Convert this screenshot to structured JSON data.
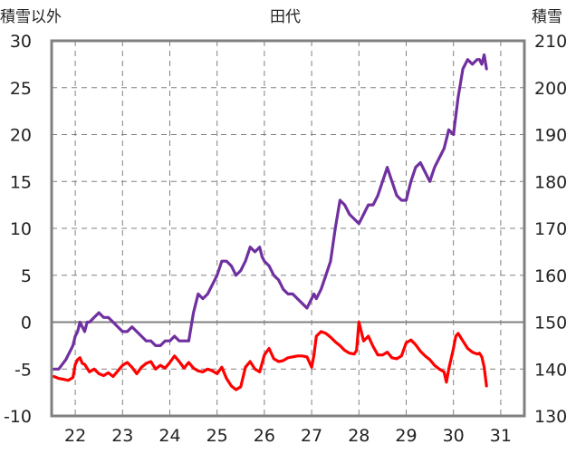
{
  "chart_data": {
    "type": "line",
    "title": "田代",
    "left_axis_label": "積雪以外",
    "right_axis_label": "積雪",
    "left_ylim": [
      -10,
      30
    ],
    "left_ticks": [
      30,
      25,
      20,
      15,
      10,
      5,
      0,
      -5,
      -10
    ],
    "right_ylim": [
      130,
      210
    ],
    "right_ticks": [
      210,
      200,
      190,
      180,
      170,
      160,
      150,
      140,
      130
    ],
    "xlim": [
      21.5,
      31.5
    ],
    "x_ticks": [
      22,
      23,
      24,
      25,
      26,
      27,
      28,
      29,
      30,
      31
    ],
    "x_tick_labels": [
      "22",
      "23",
      "24",
      "25",
      "26",
      "27",
      "28",
      "29",
      "30",
      "31"
    ],
    "grid": true,
    "colors": {
      "snow_depth": "#7030a0",
      "temperature": "#ff0000",
      "axis": "#808080",
      "grid": "#808080"
    },
    "series": [
      {
        "axis": "right",
        "color": "#7030a0",
        "x": [
          21.55,
          21.65,
          21.8,
          21.85,
          21.9,
          21.95,
          22.0,
          22.05,
          22.1,
          22.15,
          22.2,
          22.25,
          22.3,
          22.4,
          22.5,
          22.6,
          22.7,
          22.8,
          22.9,
          23.0,
          23.1,
          23.2,
          23.3,
          23.4,
          23.5,
          23.6,
          23.7,
          23.8,
          23.9,
          24.0,
          24.1,
          24.2,
          24.3,
          24.4,
          24.5,
          24.55,
          24.6,
          24.7,
          24.8,
          24.9,
          25.0,
          25.1,
          25.2,
          25.3,
          25.4,
          25.5,
          25.6,
          25.7,
          25.8,
          25.9,
          25.95,
          26.0,
          26.1,
          26.2,
          26.3,
          26.4,
          26.5,
          26.6,
          26.7,
          26.8,
          26.9,
          27.0,
          27.05,
          27.1,
          27.2,
          27.3,
          27.4,
          27.5,
          27.6,
          27.7,
          27.8,
          27.9,
          28.0,
          28.1,
          28.2,
          28.3,
          28.4,
          28.5,
          28.6,
          28.7,
          28.8,
          28.9,
          29.0,
          29.1,
          29.2,
          29.3,
          29.4,
          29.5,
          29.6,
          29.7,
          29.8,
          29.9,
          30.0,
          30.1,
          30.2,
          30.3,
          30.4,
          30.5,
          30.55,
          30.6,
          30.65,
          30.7
        ],
        "y": [
          140,
          140,
          142,
          143,
          144,
          145,
          147,
          148,
          150,
          149,
          148,
          150,
          150,
          151,
          152,
          151,
          151,
          150,
          149,
          148,
          148,
          149,
          148,
          147,
          146,
          146,
          145,
          145,
          146,
          146,
          147,
          146,
          146,
          146,
          152,
          154,
          156,
          155,
          156,
          158,
          160,
          163,
          163,
          162,
          160,
          161,
          163,
          166,
          165,
          166,
          164,
          163,
          162,
          160,
          159,
          157,
          156,
          156,
          155,
          154,
          153,
          155,
          156,
          155,
          157,
          160,
          163,
          170,
          176,
          175,
          173,
          172,
          171,
          173,
          175,
          175,
          177,
          180,
          183,
          180,
          177,
          176,
          176,
          180,
          183,
          184,
          182,
          180,
          183,
          185,
          187,
          191,
          190,
          198,
          204,
          206,
          205,
          206,
          206,
          205,
          207,
          204
        ]
      },
      {
        "axis": "left",
        "color": "#ff0000",
        "x": [
          21.55,
          21.65,
          21.75,
          21.85,
          21.95,
          22.0,
          22.05,
          22.1,
          22.15,
          22.2,
          22.3,
          22.4,
          22.5,
          22.6,
          22.7,
          22.8,
          22.9,
          23.0,
          23.1,
          23.2,
          23.3,
          23.4,
          23.5,
          23.6,
          23.7,
          23.8,
          23.9,
          24.0,
          24.1,
          24.2,
          24.3,
          24.4,
          24.5,
          24.6,
          24.7,
          24.8,
          24.9,
          25.0,
          25.1,
          25.2,
          25.3,
          25.4,
          25.5,
          25.6,
          25.7,
          25.8,
          25.9,
          26.0,
          26.1,
          26.2,
          26.3,
          26.4,
          26.5,
          26.6,
          26.7,
          26.8,
          26.9,
          27.0,
          27.05,
          27.1,
          27.2,
          27.3,
          27.4,
          27.5,
          27.6,
          27.7,
          27.8,
          27.9,
          27.95,
          28.0,
          28.1,
          28.2,
          28.3,
          28.4,
          28.5,
          28.6,
          28.7,
          28.8,
          28.9,
          29.0,
          29.1,
          29.2,
          29.3,
          29.4,
          29.5,
          29.6,
          29.7,
          29.8,
          29.85,
          29.9,
          30.0,
          30.05,
          30.1,
          30.2,
          30.3,
          30.4,
          30.5,
          30.55,
          30.6,
          30.65,
          30.7
        ],
        "y": [
          -5.8,
          -6.0,
          -6.1,
          -6.2,
          -5.9,
          -4.5,
          -4.0,
          -3.8,
          -4.4,
          -4.5,
          -5.3,
          -5.0,
          -5.5,
          -5.7,
          -5.4,
          -5.8,
          -5.2,
          -4.6,
          -4.3,
          -4.8,
          -5.5,
          -4.8,
          -4.4,
          -4.2,
          -5.0,
          -4.6,
          -4.9,
          -4.3,
          -3.6,
          -4.2,
          -4.9,
          -4.3,
          -4.9,
          -5.2,
          -5.3,
          -5.0,
          -5.2,
          -5.5,
          -4.8,
          -6.0,
          -6.8,
          -7.2,
          -6.9,
          -4.8,
          -4.2,
          -5.0,
          -5.3,
          -3.5,
          -2.8,
          -3.9,
          -4.2,
          -4.1,
          -3.8,
          -3.7,
          -3.6,
          -3.6,
          -3.7,
          -4.8,
          -3.5,
          -1.5,
          -1.0,
          -1.2,
          -1.6,
          -2.1,
          -2.5,
          -3.0,
          -3.3,
          -3.4,
          -3.0,
          0.0,
          -2.0,
          -1.5,
          -2.6,
          -3.5,
          -3.5,
          -3.2,
          -3.8,
          -3.9,
          -3.6,
          -2.2,
          -1.9,
          -2.4,
          -3.1,
          -3.6,
          -4.0,
          -4.6,
          -5.0,
          -5.3,
          -6.4,
          -5.0,
          -2.8,
          -1.5,
          -1.2,
          -2.0,
          -2.8,
          -3.2,
          -3.4,
          -3.3,
          -3.7,
          -4.8,
          -6.8
        ]
      }
    ]
  }
}
